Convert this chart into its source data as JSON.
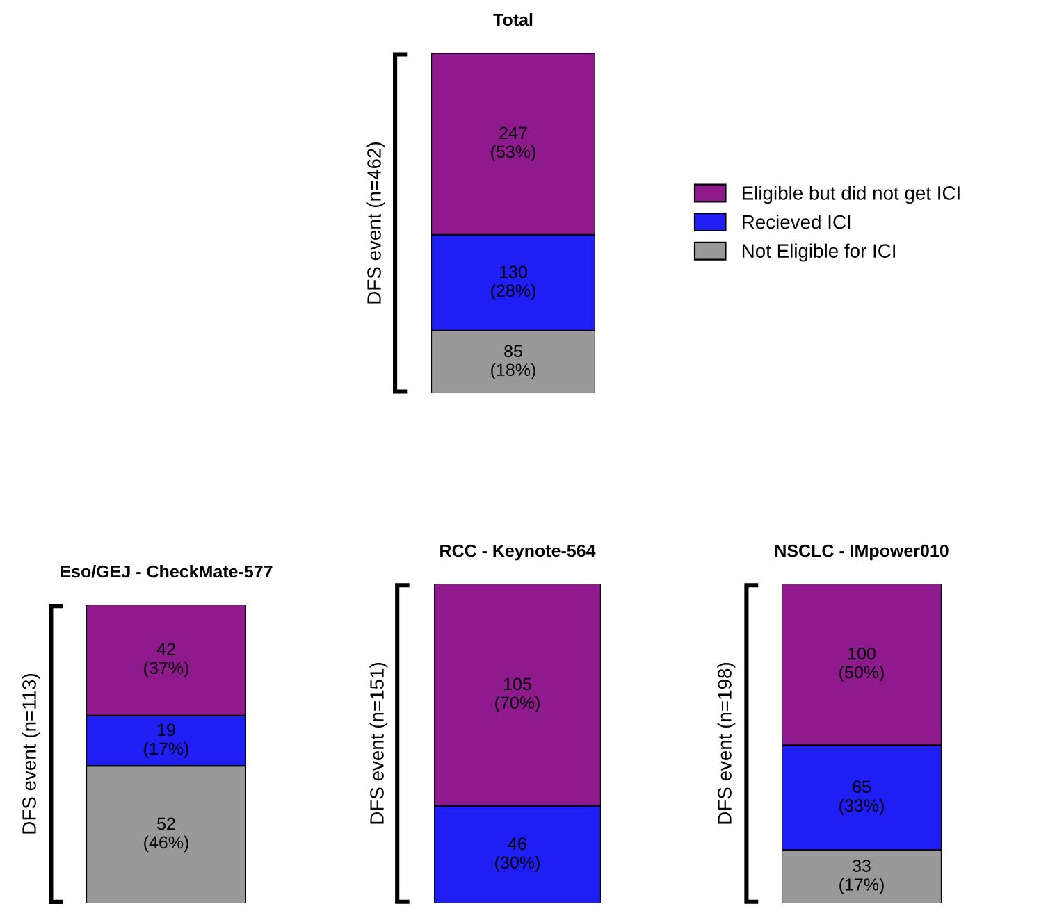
{
  "chart_data": [
    {
      "type": "bar",
      "title": "Total",
      "ylabel": "DFS event (n=462)",
      "categories": [
        null
      ],
      "stacked": true,
      "grid": false,
      "legend": "right",
      "series": [
        {
          "name": "Not Eligible for ICI",
          "color": "#999999",
          "values": [
            85
          ],
          "value_labels": [
            "85\n(18%)"
          ]
        },
        {
          "name": "Recieved ICI",
          "color": "#1f1ff5",
          "values": [
            130
          ],
          "value_labels": [
            "130\n(28%)"
          ]
        },
        {
          "name": "Eligible but did not get ICI",
          "color": "#8e1a8e",
          "values": [
            247
          ],
          "value_labels": [
            "247\n(53%)"
          ]
        }
      ]
    },
    {
      "type": "bar",
      "title": "Eso/GEJ - CheckMate-577",
      "ylabel": "DFS event (n=113)",
      "categories": [
        null
      ],
      "stacked": true,
      "grid": false,
      "series": [
        {
          "color": "#999999",
          "values": [
            52
          ],
          "value_labels": [
            "52\n(46%)"
          ]
        },
        {
          "color": "#1f1ff5",
          "values": [
            19
          ],
          "value_labels": [
            "19\n(17%)"
          ]
        },
        {
          "color": "#8e1a8e",
          "values": [
            42
          ],
          "value_labels": [
            "42\n(37%)"
          ]
        }
      ]
    },
    {
      "type": "bar",
      "title": "RCC - Keynote-564",
      "ylabel": "DFS event (n=151)",
      "categories": [
        null
      ],
      "stacked": true,
      "grid": false,
      "series": [
        {
          "color": "#1f1ff5",
          "values": [
            46
          ],
          "value_labels": [
            "46\n(30%)"
          ]
        },
        {
          "color": "#8e1a8e",
          "values": [
            105
          ],
          "value_labels": [
            "105\n(70%)"
          ]
        }
      ]
    },
    {
      "type": "bar",
      "title": "NSCLC - IMpower010",
      "ylabel": "DFS event (n=198)",
      "categories": [
        null
      ],
      "stacked": true,
      "grid": false,
      "series": [
        {
          "color": "#999999",
          "values": [
            33
          ],
          "value_labels": [
            "33\n(17%)"
          ]
        },
        {
          "color": "#1f1ff5",
          "values": [
            65
          ],
          "value_labels": [
            "65\n(33%)"
          ]
        },
        {
          "color": "#8e1a8e",
          "values": [
            100
          ],
          "value_labels": [
            "100\n(50%)"
          ]
        }
      ]
    }
  ]
}
